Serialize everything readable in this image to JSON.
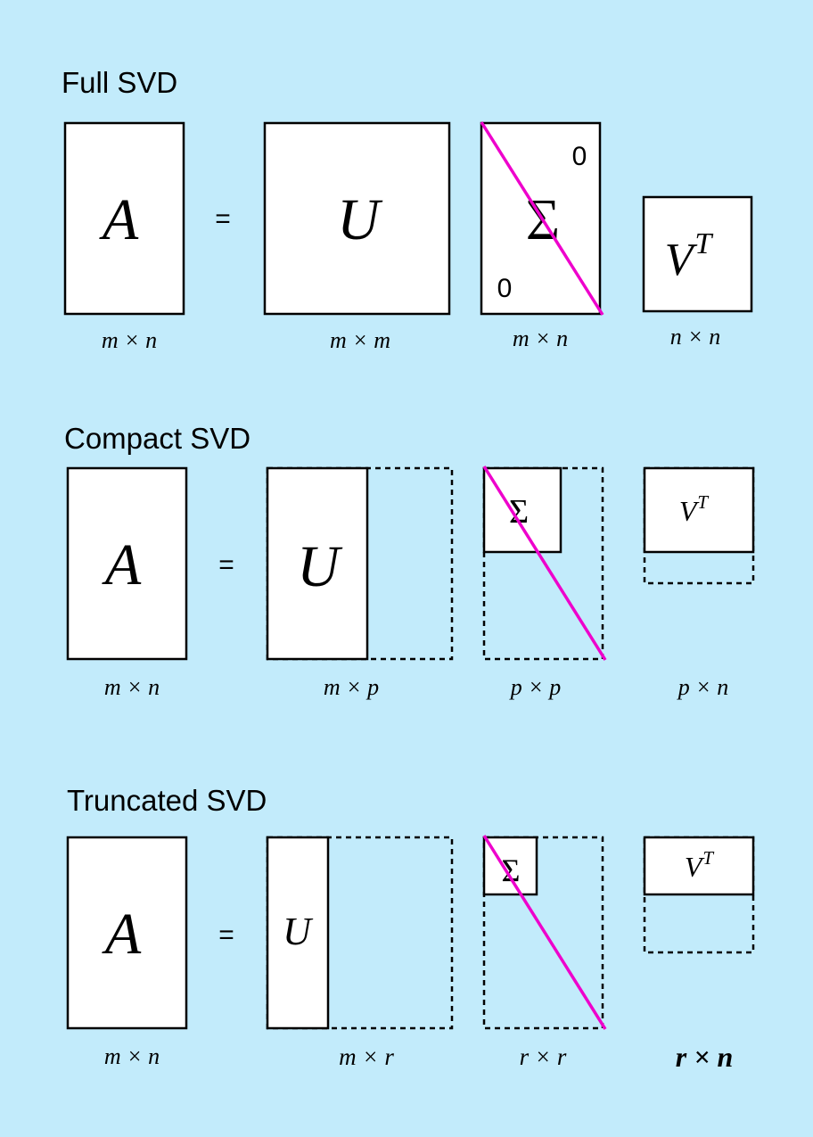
{
  "colors": {
    "background": "#c2ebfb",
    "matrix_fill": "#ffffff",
    "stroke": "#000000",
    "diagonal": "#ee00cc"
  },
  "sections": [
    {
      "title": "Full SVD",
      "a": {
        "symbol": "A",
        "dims": "m × n"
      },
      "eq": "=",
      "u": {
        "symbol": "U",
        "dims": "m × m"
      },
      "sigma": {
        "symbol": "Σ",
        "dims": "m × n",
        "zero_top": "0",
        "zero_bottom": "0"
      },
      "v": {
        "symbol": "V",
        "sup": "T",
        "dims": "n × n"
      }
    },
    {
      "title": "Compact SVD",
      "a": {
        "symbol": "A",
        "dims": "m × n"
      },
      "eq": "=",
      "u": {
        "symbol": "U",
        "dims": "m × p"
      },
      "sigma": {
        "symbol": "Σ",
        "dims": "p × p"
      },
      "v": {
        "symbol": "V",
        "sup": "T",
        "dims": "p × n"
      }
    },
    {
      "title": "Truncated SVD",
      "a": {
        "symbol": "A",
        "dims": "m × n"
      },
      "eq": "=",
      "u": {
        "symbol": "U",
        "dims": "m × r"
      },
      "sigma": {
        "symbol": "Σ",
        "dims": "r × r"
      },
      "v": {
        "symbol": "V",
        "sup": "T",
        "dims": "r × n"
      }
    }
  ]
}
